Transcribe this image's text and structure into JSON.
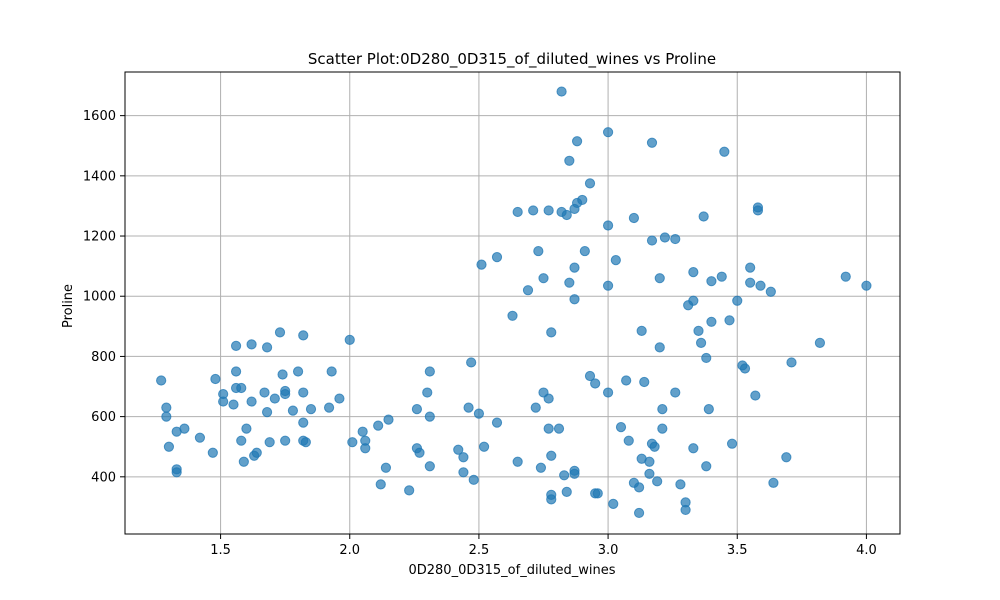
{
  "chart_data": {
    "type": "scatter",
    "title": "Scatter Plot:0D280_0D315_of_diluted_wines vs Proline",
    "xlabel": "0D280_0D315_of_diluted_wines",
    "ylabel": "Proline",
    "xlim": [
      1.13,
      4.13
    ],
    "ylim": [
      210,
      1745
    ],
    "xticks": [
      1.5,
      2.0,
      2.5,
      3.0,
      3.5,
      4.0
    ],
    "xtick_labels": [
      "1.5",
      "2.0",
      "2.5",
      "3.0",
      "3.5",
      "4.0"
    ],
    "yticks": [
      400,
      600,
      800,
      1000,
      1200,
      1400,
      1600
    ],
    "ytick_labels": [
      "400",
      "600",
      "800",
      "1000",
      "1200",
      "1400",
      "1600"
    ],
    "grid": true,
    "color": "#1f77b4",
    "points": [
      [
        1.27,
        720
      ],
      [
        1.29,
        630
      ],
      [
        1.29,
        600
      ],
      [
        1.3,
        500
      ],
      [
        1.33,
        550
      ],
      [
        1.33,
        425
      ],
      [
        1.33,
        415
      ],
      [
        1.36,
        560
      ],
      [
        1.42,
        530
      ],
      [
        1.47,
        480
      ],
      [
        1.48,
        725
      ],
      [
        1.51,
        675
      ],
      [
        1.51,
        650
      ],
      [
        1.55,
        640
      ],
      [
        1.56,
        835
      ],
      [
        1.56,
        750
      ],
      [
        1.56,
        695
      ],
      [
        1.58,
        695
      ],
      [
        1.58,
        520
      ],
      [
        1.59,
        450
      ],
      [
        1.6,
        560
      ],
      [
        1.62,
        840
      ],
      [
        1.62,
        650
      ],
      [
        1.63,
        470
      ],
      [
        1.64,
        480
      ],
      [
        1.67,
        680
      ],
      [
        1.68,
        830
      ],
      [
        1.68,
        615
      ],
      [
        1.69,
        515
      ],
      [
        1.71,
        660
      ],
      [
        1.73,
        880
      ],
      [
        1.74,
        740
      ],
      [
        1.75,
        685
      ],
      [
        1.75,
        675
      ],
      [
        1.75,
        520
      ],
      [
        1.78,
        620
      ],
      [
        1.8,
        750
      ],
      [
        1.82,
        870
      ],
      [
        1.82,
        680
      ],
      [
        1.82,
        580
      ],
      [
        1.82,
        520
      ],
      [
        1.83,
        515
      ],
      [
        1.85,
        625
      ],
      [
        1.92,
        630
      ],
      [
        1.93,
        750
      ],
      [
        1.96,
        660
      ],
      [
        2.0,
        855
      ],
      [
        2.01,
        515
      ],
      [
        2.05,
        550
      ],
      [
        2.06,
        520
      ],
      [
        2.06,
        495
      ],
      [
        2.11,
        570
      ],
      [
        2.12,
        375
      ],
      [
        2.14,
        430
      ],
      [
        2.15,
        590
      ],
      [
        2.23,
        355
      ],
      [
        2.26,
        625
      ],
      [
        2.26,
        495
      ],
      [
        2.27,
        480
      ],
      [
        2.3,
        680
      ],
      [
        2.31,
        750
      ],
      [
        2.31,
        600
      ],
      [
        2.31,
        435
      ],
      [
        2.42,
        490
      ],
      [
        2.44,
        465
      ],
      [
        2.44,
        415
      ],
      [
        2.46,
        630
      ],
      [
        2.47,
        780
      ],
      [
        2.48,
        390
      ],
      [
        2.5,
        610
      ],
      [
        2.51,
        1105
      ],
      [
        2.52,
        500
      ],
      [
        2.57,
        1130
      ],
      [
        2.57,
        580
      ],
      [
        2.63,
        935
      ],
      [
        2.65,
        1280
      ],
      [
        2.65,
        450
      ],
      [
        2.69,
        1020
      ],
      [
        2.71,
        1285
      ],
      [
        2.72,
        630
      ],
      [
        2.73,
        1150
      ],
      [
        2.74,
        430
      ],
      [
        2.75,
        1060
      ],
      [
        2.75,
        680
      ],
      [
        2.77,
        1285
      ],
      [
        2.77,
        660
      ],
      [
        2.77,
        560
      ],
      [
        2.78,
        880
      ],
      [
        2.78,
        470
      ],
      [
        2.78,
        340
      ],
      [
        2.78,
        325
      ],
      [
        2.81,
        560
      ],
      [
        2.82,
        1680
      ],
      [
        2.82,
        1280
      ],
      [
        2.83,
        405
      ],
      [
        2.84,
        1270
      ],
      [
        2.84,
        350
      ],
      [
        2.85,
        1450
      ],
      [
        2.85,
        1045
      ],
      [
        2.87,
        1290
      ],
      [
        2.87,
        1095
      ],
      [
        2.87,
        990
      ],
      [
        2.87,
        420
      ],
      [
        2.87,
        410
      ],
      [
        2.88,
        1515
      ],
      [
        2.88,
        1310
      ],
      [
        2.9,
        1320
      ],
      [
        2.91,
        1150
      ],
      [
        2.93,
        1375
      ],
      [
        2.93,
        735
      ],
      [
        2.95,
        710
      ],
      [
        2.95,
        345
      ],
      [
        2.96,
        345
      ],
      [
        3.0,
        1545
      ],
      [
        3.0,
        1235
      ],
      [
        3.0,
        1035
      ],
      [
        3.0,
        680
      ],
      [
        3.02,
        310
      ],
      [
        3.03,
        1120
      ],
      [
        3.05,
        565
      ],
      [
        3.07,
        720
      ],
      [
        3.08,
        520
      ],
      [
        3.1,
        1260
      ],
      [
        3.1,
        380
      ],
      [
        3.12,
        365
      ],
      [
        3.12,
        280
      ],
      [
        3.13,
        885
      ],
      [
        3.13,
        460
      ],
      [
        3.14,
        715
      ],
      [
        3.16,
        450
      ],
      [
        3.16,
        410
      ],
      [
        3.17,
        1510
      ],
      [
        3.17,
        1185
      ],
      [
        3.17,
        510
      ],
      [
        3.18,
        500
      ],
      [
        3.19,
        385
      ],
      [
        3.2,
        1060
      ],
      [
        3.2,
        830
      ],
      [
        3.21,
        625
      ],
      [
        3.21,
        560
      ],
      [
        3.22,
        1195
      ],
      [
        3.26,
        1190
      ],
      [
        3.26,
        680
      ],
      [
        3.28,
        375
      ],
      [
        3.3,
        315
      ],
      [
        3.3,
        290
      ],
      [
        3.31,
        970
      ],
      [
        3.33,
        1080
      ],
      [
        3.33,
        985
      ],
      [
        3.33,
        495
      ],
      [
        3.35,
        885
      ],
      [
        3.36,
        845
      ],
      [
        3.37,
        1265
      ],
      [
        3.38,
        795
      ],
      [
        3.38,
        435
      ],
      [
        3.39,
        625
      ],
      [
        3.4,
        1050
      ],
      [
        3.4,
        915
      ],
      [
        3.44,
        1065
      ],
      [
        3.45,
        1480
      ],
      [
        3.47,
        920
      ],
      [
        3.48,
        510
      ],
      [
        3.5,
        985
      ],
      [
        3.52,
        770
      ],
      [
        3.53,
        760
      ],
      [
        3.55,
        1095
      ],
      [
        3.55,
        1045
      ],
      [
        3.57,
        670
      ],
      [
        3.58,
        1295
      ],
      [
        3.58,
        1285
      ],
      [
        3.59,
        1035
      ],
      [
        3.63,
        1015
      ],
      [
        3.64,
        380
      ],
      [
        3.69,
        465
      ],
      [
        3.71,
        780
      ],
      [
        3.82,
        845
      ],
      [
        3.92,
        1065
      ],
      [
        4.0,
        1035
      ]
    ]
  }
}
